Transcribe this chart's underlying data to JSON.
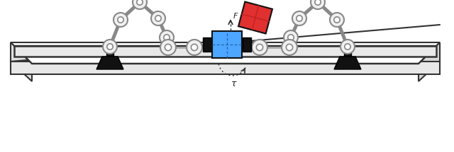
{
  "figure_width": 6.4,
  "figure_height": 2.15,
  "dpi": 100,
  "bg_color": "#ffffff",
  "robot_body_color": "#f0f0f0",
  "robot_edge_color": "#888888",
  "robot_base_color": "#111111",
  "cube_color": "#4da6ff",
  "cube_edge_color": "#111111",
  "red_cube_color": "#e03030",
  "red_cube_edge_color": "#111111",
  "connector_color": "#111111",
  "F_label": "F",
  "tau_label": "τ",
  "arrow_color": "#333333",
  "dashed_color": "#555555",
  "table_top_color": "#ffffff",
  "table_side_color": "#e8e8e8",
  "table_edge_color": "#333333"
}
